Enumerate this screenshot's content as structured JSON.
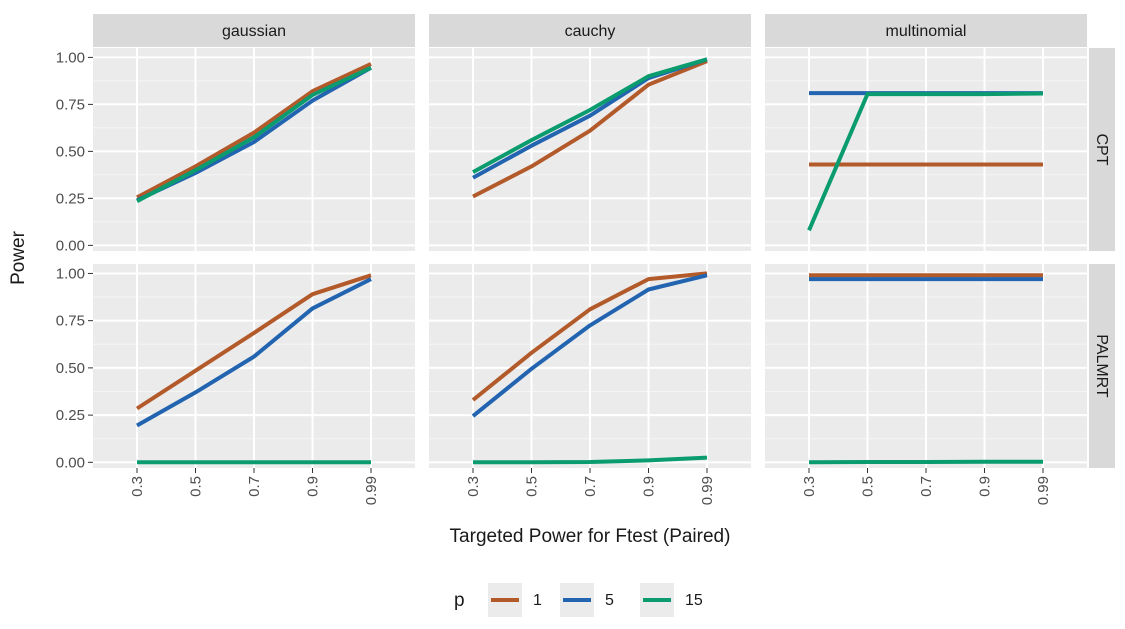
{
  "chart_data": {
    "type": "line",
    "layout": "facet-grid",
    "xlabel": "Targeted Power for Ftest (Paired)",
    "ylabel": "Power",
    "x_categories": [
      "0.3",
      "0.5",
      "0.7",
      "0.9",
      "0.99"
    ],
    "y_ticks": [
      "0.00",
      "0.25",
      "0.50",
      "0.75",
      "1.00"
    ],
    "ylim": [
      -0.03,
      1.05
    ],
    "columns": [
      "gaussian",
      "cauchy",
      "multinomial"
    ],
    "rows": [
      "CPT",
      "PALMRT"
    ],
    "legend": {
      "title": "p",
      "position": "bottom",
      "entries": [
        {
          "label": "1",
          "color": "#B35A2A"
        },
        {
          "label": "5",
          "color": "#2264B0"
        },
        {
          "label": "15",
          "color": "#0A9C6E"
        }
      ]
    },
    "grid": true,
    "panels": [
      {
        "row": "CPT",
        "col": "gaussian",
        "series": [
          {
            "p": "1",
            "values": [
              0.255,
              0.42,
              0.6,
              0.82,
              0.965
            ]
          },
          {
            "p": "5",
            "values": [
              0.24,
              0.385,
              0.55,
              0.77,
              0.945
            ]
          },
          {
            "p": "15",
            "values": [
              0.235,
              0.4,
              0.575,
              0.8,
              0.945
            ]
          }
        ]
      },
      {
        "row": "CPT",
        "col": "cauchy",
        "series": [
          {
            "p": "1",
            "values": [
              0.26,
              0.42,
              0.61,
              0.855,
              0.98
            ]
          },
          {
            "p": "5",
            "values": [
              0.36,
              0.53,
              0.69,
              0.89,
              0.99
            ]
          },
          {
            "p": "15",
            "values": [
              0.39,
              0.56,
              0.72,
              0.9,
              0.99
            ]
          }
        ]
      },
      {
        "row": "CPT",
        "col": "multinomial",
        "series": [
          {
            "p": "1",
            "values": [
              0.43,
              0.43,
              0.43,
              0.43,
              0.43
            ]
          },
          {
            "p": "5",
            "values": [
              0.81,
              0.81,
              0.81,
              0.81,
              0.81
            ]
          },
          {
            "p": "15",
            "values": [
              0.08,
              0.805,
              0.805,
              0.805,
              0.808
            ]
          }
        ]
      },
      {
        "row": "PALMRT",
        "col": "gaussian",
        "series": [
          {
            "p": "1",
            "values": [
              0.285,
              0.485,
              0.685,
              0.89,
              0.99
            ]
          },
          {
            "p": "5",
            "values": [
              0.195,
              0.37,
              0.56,
              0.815,
              0.97
            ]
          },
          {
            "p": "15",
            "values": [
              0.0,
              0.0,
              0.0,
              0.0,
              0.0
            ]
          }
        ]
      },
      {
        "row": "PALMRT",
        "col": "cauchy",
        "series": [
          {
            "p": "1",
            "values": [
              0.33,
              0.58,
              0.81,
              0.97,
              1.0
            ]
          },
          {
            "p": "5",
            "values": [
              0.245,
              0.495,
              0.725,
              0.915,
              0.99
            ]
          },
          {
            "p": "15",
            "values": [
              0.0,
              0.0,
              0.002,
              0.01,
              0.025
            ]
          }
        ]
      },
      {
        "row": "PALMRT",
        "col": "multinomial",
        "series": [
          {
            "p": "1",
            "values": [
              0.99,
              0.99,
              0.99,
              0.99,
              0.99
            ]
          },
          {
            "p": "5",
            "values": [
              0.97,
              0.97,
              0.97,
              0.97,
              0.97
            ]
          },
          {
            "p": "15",
            "values": [
              0.0,
              0.002,
              0.002,
              0.003,
              0.003
            ]
          }
        ]
      }
    ]
  }
}
